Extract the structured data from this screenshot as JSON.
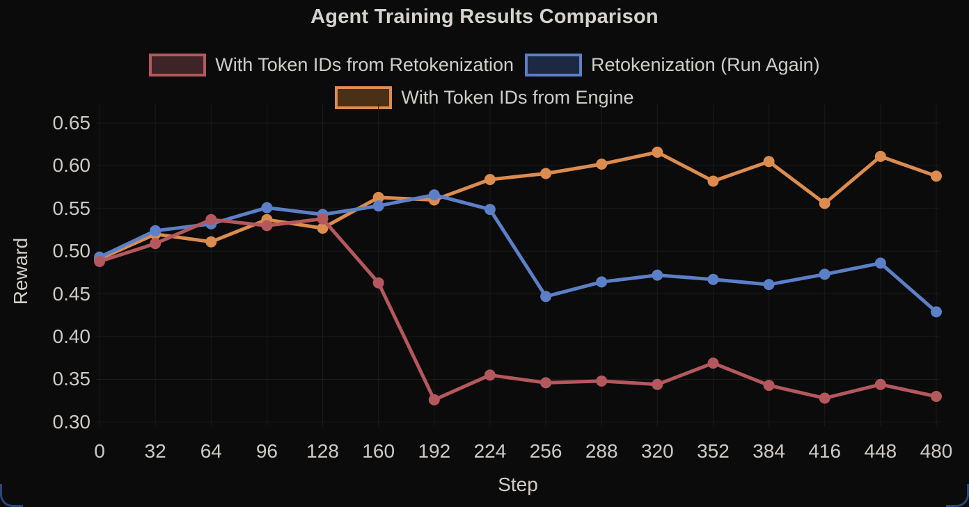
{
  "window": {
    "corner_accent_color": "#4a7bd0"
  },
  "chart_data": {
    "type": "line",
    "title": "Agent Training Results Comparison",
    "xlabel": "Step",
    "ylabel": "Reward",
    "background_color": "#0b0b0b",
    "grid": true,
    "grid_color": "#1b1b1b",
    "legend_position": "upper center",
    "legend_rows": [
      [
        0,
        1
      ],
      [
        2
      ]
    ],
    "x": [
      0,
      32,
      64,
      96,
      128,
      160,
      192,
      224,
      256,
      288,
      320,
      352,
      384,
      416,
      448,
      480
    ],
    "xticks": [
      0,
      32,
      64,
      96,
      128,
      160,
      192,
      224,
      256,
      288,
      320,
      352,
      384,
      416,
      448,
      480
    ],
    "yticks": [
      "0.30",
      "0.35",
      "0.40",
      "0.45",
      "0.50",
      "0.55",
      "0.60",
      "0.65"
    ],
    "xlim": [
      -2,
      482
    ],
    "ylim": [
      0.295,
      0.672
    ],
    "series": [
      {
        "id": "with-token-ids-from-retokenization",
        "name": "With Token IDs from Retokenization",
        "color": "#b5585d",
        "legend_fill": "#3f2427",
        "values": [
          0.488,
          0.509,
          0.537,
          0.53,
          0.538,
          0.463,
          0.326,
          0.355,
          0.346,
          0.348,
          0.344,
          0.369,
          0.343,
          0.328,
          0.344,
          0.33
        ]
      },
      {
        "id": "retokenization-run-again",
        "name": "Retokenization (Run Again)",
        "color": "#5b80c8",
        "legend_fill": "#1d2942",
        "values": [
          0.493,
          0.524,
          0.532,
          0.551,
          0.543,
          0.553,
          0.566,
          0.549,
          0.447,
          0.464,
          0.472,
          0.467,
          0.461,
          0.473,
          0.486,
          0.429
        ]
      },
      {
        "id": "with-token-ids-from-engine",
        "name": "With Token IDs from Engine",
        "color": "#dc8c4f",
        "legend_fill": "#4b3018",
        "values": [
          0.491,
          0.52,
          0.511,
          0.537,
          0.527,
          0.563,
          0.56,
          0.584,
          0.591,
          0.602,
          0.616,
          0.582,
          0.605,
          0.556,
          0.611,
          0.588
        ]
      }
    ]
  }
}
